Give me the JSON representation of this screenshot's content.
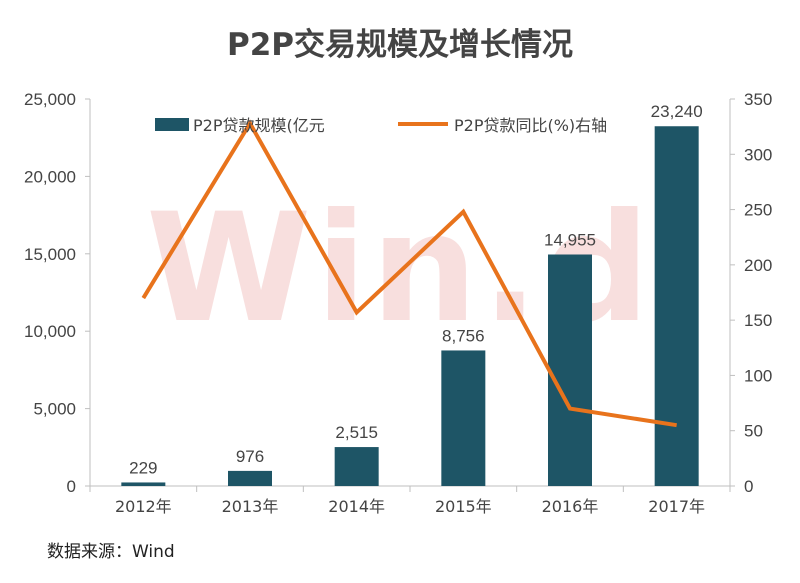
{
  "chart_data": {
    "type": "bar+line",
    "title": "P2P交易规模及增长情况",
    "categories": [
      "2012年",
      "2013年",
      "2014年",
      "2015年",
      "2016年",
      "2017年"
    ],
    "series": [
      {
        "name": "P2P贷款规模(亿元",
        "type": "bar",
        "axis": "left",
        "color": "#1e5566",
        "values": [
          229,
          976,
          2515,
          8756,
          14955,
          23240
        ],
        "data_labels": [
          "229",
          "976",
          "2,515",
          "8,756",
          "14,955",
          "23,240"
        ]
      },
      {
        "name": "P2P贷款同比(%)右轴",
        "type": "line",
        "axis": "right",
        "color": "#e8731c",
        "values": [
          170,
          328,
          157,
          248,
          70,
          55
        ]
      }
    ],
    "y_left": {
      "ylim": [
        0,
        25000
      ],
      "ticks": [
        0,
        5000,
        10000,
        15000,
        20000,
        25000
      ],
      "tick_labels": [
        "0",
        "5,000",
        "10,000",
        "15,000",
        "20,000",
        "25,000"
      ]
    },
    "y_right": {
      "ylim": [
        0,
        350
      ],
      "ticks": [
        0,
        50,
        100,
        150,
        200,
        250,
        300,
        350
      ],
      "tick_labels": [
        "0",
        "50",
        "100",
        "150",
        "200",
        "250",
        "300",
        "350"
      ]
    },
    "grid": false,
    "legend_position": "top"
  },
  "source_text": "数据来源：Wind",
  "watermark_text": "Win.d",
  "colors": {
    "bar": "#1e5566",
    "line": "#e8731c",
    "axis": "#bfbfbf",
    "watermark": "#d9534f"
  }
}
